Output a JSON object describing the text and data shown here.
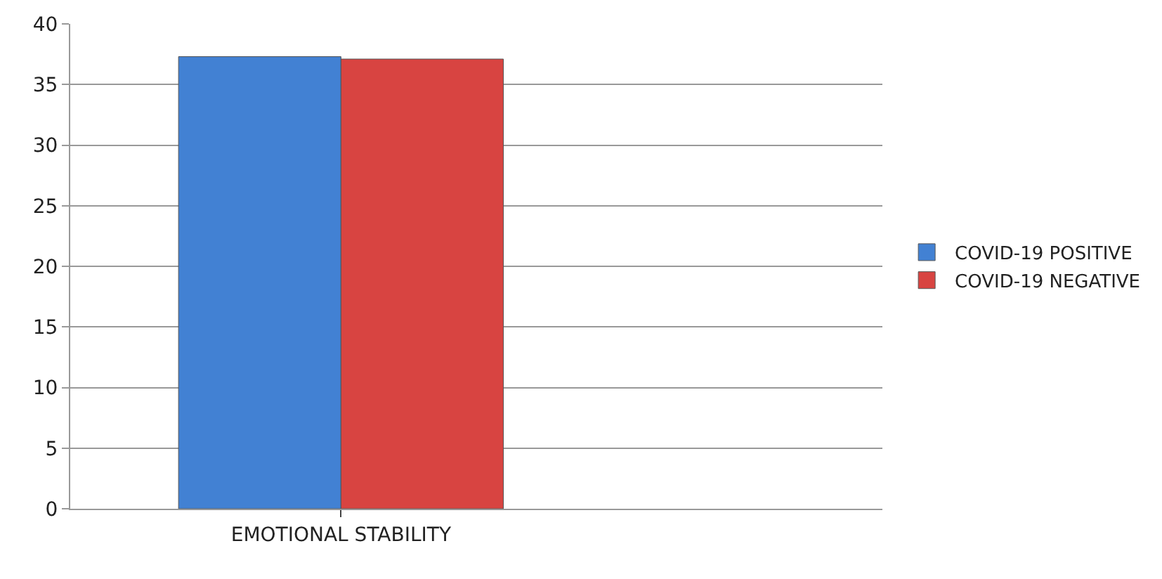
{
  "chart_data": {
    "type": "bar",
    "categories": [
      "EMOTIONAL STABILITY"
    ],
    "series": [
      {
        "name": "COVID-19 POSITIVE",
        "color": "#4281d3",
        "values": [
          37.3
        ]
      },
      {
        "name": "COVID-19 NEGATIVE",
        "color": "#d84441",
        "values": [
          37.1
        ]
      }
    ],
    "ylim": [
      0,
      40
    ],
    "yticks": [
      0,
      5,
      10,
      15,
      20,
      25,
      30,
      35,
      40
    ],
    "grid": "y",
    "legend": "right"
  }
}
